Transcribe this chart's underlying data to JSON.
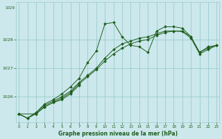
{
  "title": "Graphe pression niveau de la mer (hPa)",
  "bg_color": "#cce8ec",
  "grid_color": "#99cccc",
  "line_color": "#1e5e1e",
  "marker_color": "#1e5e1e",
  "x_ticks": [
    0,
    1,
    2,
    3,
    4,
    5,
    6,
    7,
    8,
    9,
    10,
    11,
    12,
    13,
    14,
    15,
    16,
    17,
    18,
    19,
    20,
    21,
    22,
    23
  ],
  "xlim": [
    -0.3,
    23.3
  ],
  "ylim": [
    1025.1,
    1029.3
  ],
  "yticks": [
    1026,
    1027,
    1028
  ],
  "series": [
    {
      "x": [
        0,
        1,
        2,
        3,
        4,
        5,
        6,
        7,
        8,
        9,
        10,
        11,
        12,
        13,
        14,
        15,
        16,
        17,
        18,
        19,
        20,
        21,
        22,
        23
      ],
      "y": [
        1025.4,
        1025.25,
        1025.45,
        1025.75,
        1025.9,
        1026.1,
        1026.35,
        1026.65,
        1027.2,
        1027.6,
        1028.55,
        1028.6,
        1028.1,
        1027.8,
        1027.75,
        1027.55,
        1028.3,
        1028.45,
        1028.45,
        1028.4,
        1028.1,
        1027.55,
        1027.75,
        1027.8
      ]
    },
    {
      "x": [
        0,
        1,
        2,
        3,
        4,
        5,
        6,
        7,
        8,
        9,
        10,
        11,
        12,
        13,
        14,
        15,
        16,
        17,
        18,
        19,
        20,
        21,
        22,
        23
      ],
      "y": [
        1025.4,
        1025.25,
        1025.45,
        1025.7,
        1025.85,
        1026.0,
        1026.2,
        1026.5,
        1026.75,
        1027.0,
        1027.35,
        1027.65,
        1027.85,
        1027.95,
        1028.05,
        1028.1,
        1028.2,
        1028.3,
        1028.3,
        1028.3,
        1028.1,
        1027.55,
        1027.7,
        1027.8
      ]
    },
    {
      "x": [
        0,
        1,
        2,
        3,
        4,
        5,
        6,
        7,
        8,
        9,
        10,
        11,
        12,
        13,
        14,
        15,
        16,
        17,
        18,
        19,
        20,
        21,
        22,
        23
      ],
      "y": [
        1025.4,
        1025.25,
        1025.4,
        1025.65,
        1025.8,
        1025.95,
        1026.15,
        1026.45,
        1026.7,
        1026.95,
        1027.25,
        1027.5,
        1027.7,
        1027.85,
        1027.95,
        1028.0,
        1028.15,
        1028.25,
        1028.3,
        1028.28,
        1028.05,
        1027.5,
        1027.65,
        1027.8
      ]
    },
    {
      "x": [
        0,
        2,
        3,
        4,
        5,
        6,
        7
      ],
      "y": [
        1025.4,
        1025.4,
        1025.65,
        1025.8,
        1025.9,
        1026.1,
        1026.4
      ]
    }
  ]
}
